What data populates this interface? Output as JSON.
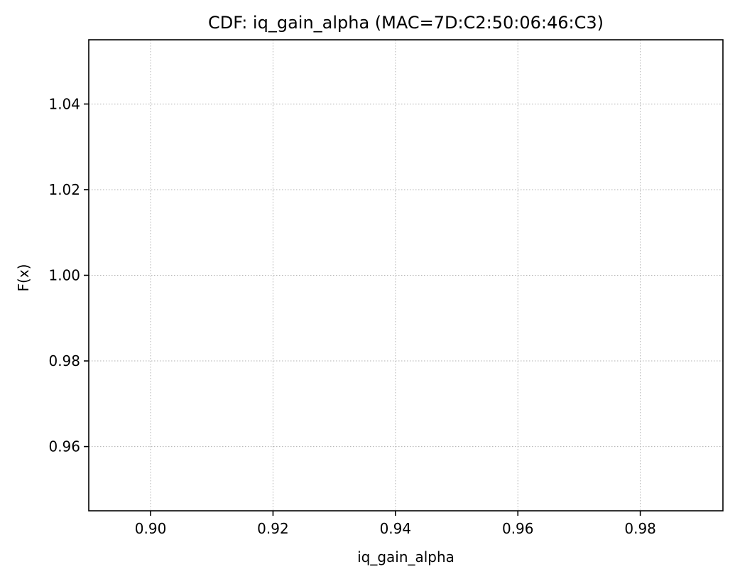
{
  "chart_data": {
    "type": "line",
    "title": "CDF: iq_gain_alpha (MAC=7D:C2:50:06:46:C3)",
    "xlabel": "iq_gain_alpha",
    "ylabel": "F(x)",
    "xlim": [
      0.8899,
      0.9935
    ],
    "ylim": [
      0.945,
      1.055
    ],
    "xticks": [
      0.9,
      0.92,
      0.94,
      0.96,
      0.98
    ],
    "xtick_labels": [
      "0.90",
      "0.92",
      "0.94",
      "0.96",
      "0.98"
    ],
    "yticks": [
      0.96,
      0.98,
      1.0,
      1.02,
      1.04
    ],
    "ytick_labels": [
      "0.96",
      "0.98",
      "1.00",
      "1.02",
      "1.04"
    ],
    "grid": true,
    "series": [
      {
        "x": [],
        "y": []
      }
    ]
  },
  "colors": {
    "background": "#ffffff",
    "axes": "#000000",
    "grid": "#b0b0b0",
    "text": "#000000"
  }
}
